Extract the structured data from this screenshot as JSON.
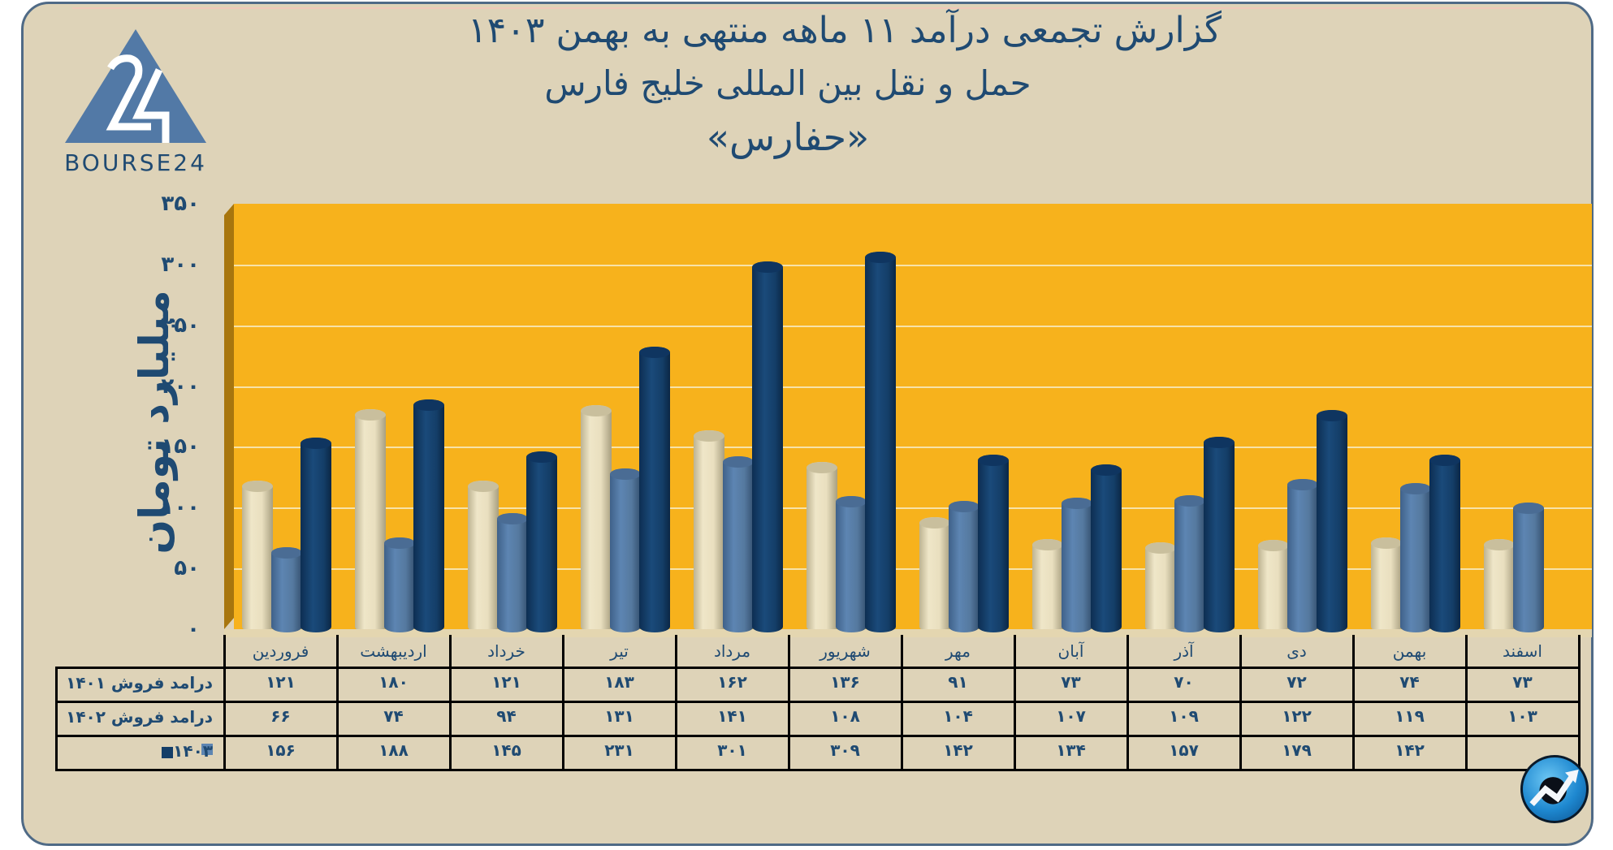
{
  "header": {
    "title_line1": "گزارش تجمعی درآمد ۱۱ ماهه منتهی به بهمن ۱۴۰۳",
    "title_line2": "حمل و نقل بین المللی خلیج فارس",
    "title_line3": "«حفارس»"
  },
  "logo": {
    "text": "BOURSE24",
    "mark": "24"
  },
  "colors": {
    "background": "#ded3b8",
    "plot_background": "#f7b21c",
    "series_1401": "#e9dfbf",
    "series_1402": "#5d85b2",
    "series_1403": "#143e68",
    "text": "#1f4a72"
  },
  "chart_data": {
    "type": "bar",
    "title": "گزارش تجمعی درآمد ۱۱ ماهه منتهی به بهمن ۱۴۰۳ — حمل و نقل بین المللی خلیج فارس «حفارس»",
    "xlabel": "",
    "ylabel": "میلیارد تومان",
    "ylim": [
      0,
      350
    ],
    "yticks": [
      0,
      50,
      100,
      150,
      200,
      250,
      300,
      350
    ],
    "ytick_labels": [
      "۰",
      "۵۰",
      "۱۰۰",
      "۱۵۰",
      "۲۰۰",
      "۲۵۰",
      "۳۰۰",
      "۳۵۰"
    ],
    "grid": true,
    "legend_position": "table-left",
    "categories": [
      "فروردین",
      "اردیبهشت",
      "خرداد",
      "تیر",
      "مرداد",
      "شهریور",
      "مهر",
      "آبان",
      "آذر",
      "دی",
      "بهمن",
      "اسفند"
    ],
    "series": [
      {
        "name": "درامد فروش ۱۴۰۱",
        "values": [
          121,
          180,
          121,
          183,
          162,
          136,
          91,
          73,
          70,
          72,
          74,
          73
        ]
      },
      {
        "name": "درامد فروش ۱۴۰۲",
        "values": [
          66,
          74,
          94,
          131,
          141,
          108,
          104,
          107,
          109,
          122,
          119,
          103
        ]
      },
      {
        "name": "۱۴۰۳",
        "values": [
          156,
          188,
          145,
          231,
          301,
          309,
          142,
          134,
          157,
          179,
          142,
          null
        ]
      }
    ]
  },
  "table": {
    "headers": [
      "فروردین",
      "اردیبهشت",
      "خرداد",
      "تیر",
      "مرداد",
      "شهریور",
      "مهر",
      "آبان",
      "آذر",
      "دی",
      "بهمن",
      "اسفند"
    ],
    "rows": [
      {
        "label": "درامد فروش ۱۴۰۱",
        "cells": [
          "۱۲۱",
          "۱۸۰",
          "۱۲۱",
          "۱۸۳",
          "۱۶۲",
          "۱۳۶",
          "۹۱",
          "۷۳",
          "۷۰",
          "۷۲",
          "۷۴",
          "۷۳"
        ]
      },
      {
        "label": "درامد فروش ۱۴۰۲",
        "cells": [
          "۶۶",
          "۷۴",
          "۹۴",
          "۱۳۱",
          "۱۴۱",
          "۱۰۸",
          "۱۰۴",
          "۱۰۷",
          "۱۰۹",
          "۱۲۲",
          "۱۱۹",
          "۱۰۳"
        ]
      },
      {
        "label": "۱۴۰۳",
        "cells": [
          "۱۵۶",
          "۱۸۸",
          "۱۴۵",
          "۲۳۱",
          "۳۰۱",
          "۳۰۹",
          "۱۴۲",
          "۱۳۴",
          "۱۵۷",
          "۱۷۹",
          "۱۴۲",
          ""
        ]
      }
    ]
  },
  "badge": {
    "icon": "trend-up-icon"
  }
}
